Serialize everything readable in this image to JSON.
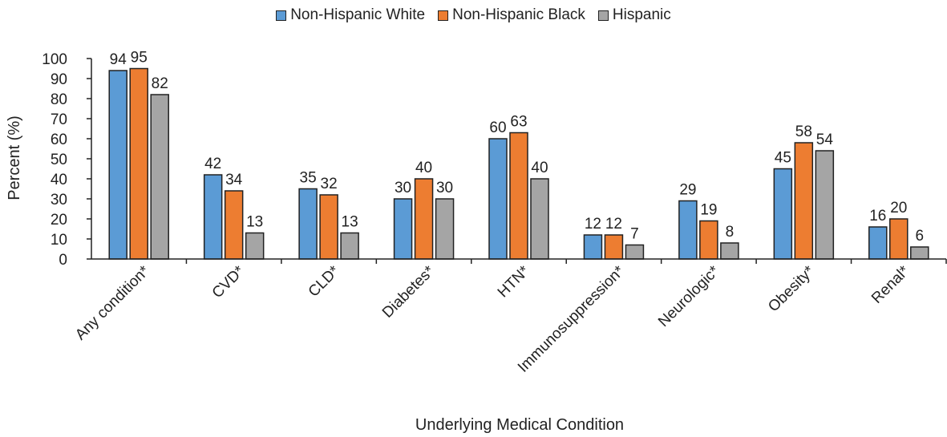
{
  "chart_data": {
    "type": "bar",
    "categories": [
      "Any condition*",
      "CVD*",
      "CLD*",
      "Diabetes*",
      "HTN*",
      "Immunosuppression*",
      "Neurologic*",
      "Obesity*",
      "Renal*"
    ],
    "series": [
      {
        "name": "Non-Hispanic White",
        "color": "#5b9bd5",
        "values": [
          94,
          42,
          35,
          30,
          60,
          12,
          29,
          45,
          16
        ]
      },
      {
        "name": "Non-Hispanic Black",
        "color": "#ed7d31",
        "values": [
          95,
          34,
          32,
          40,
          63,
          12,
          19,
          58,
          20
        ]
      },
      {
        "name": "Hispanic",
        "color": "#a5a5a5",
        "values": [
          82,
          13,
          13,
          30,
          40,
          7,
          8,
          54,
          6
        ]
      }
    ],
    "title": "",
    "xlabel": "Underlying Medical Condition",
    "ylabel": "Percent (%)",
    "ylim": [
      0,
      100
    ],
    "yticks": [
      0,
      10,
      20,
      30,
      40,
      50,
      60,
      70,
      80,
      90,
      100
    ],
    "grid": false,
    "legend_position": "top"
  }
}
